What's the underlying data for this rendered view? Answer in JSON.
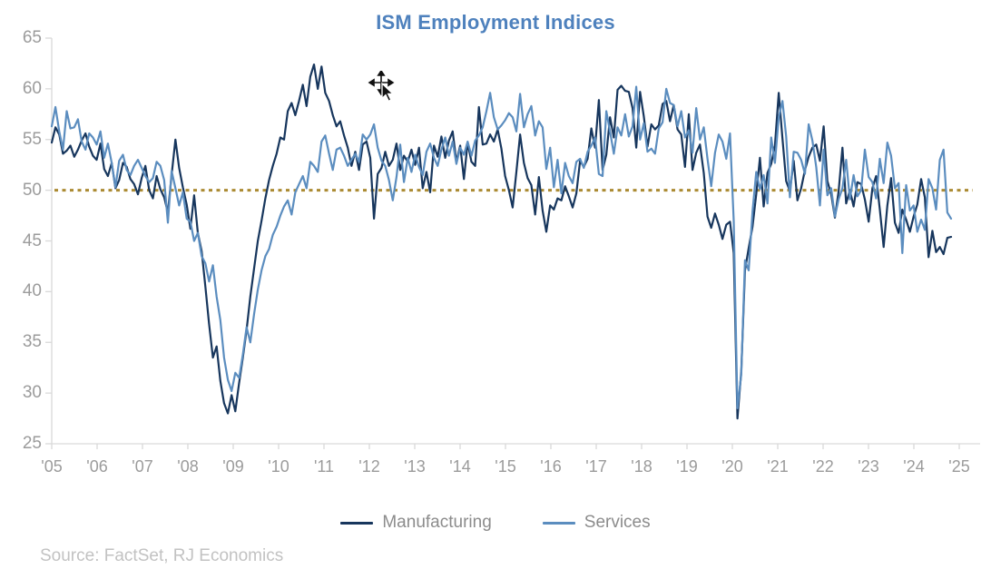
{
  "title": "ISM Employment Indices",
  "source_note": "Source: FactSet, RJ Economics",
  "colors": {
    "title": "#4e81bd",
    "manufacturing": "#17365d",
    "services": "#5b8dbf",
    "reference_line": "#ab8b33",
    "axis_line": "#d9d9d9",
    "axis_label": "#9b9b9b",
    "legend_text": "#8c8c8c",
    "source_text": "#c2c2c2"
  },
  "chart_data": {
    "type": "line",
    "title": "ISM Employment Indices",
    "xlabel": "",
    "ylabel": "",
    "ylim": [
      25,
      65
    ],
    "y_ticks": [
      25,
      30,
      35,
      40,
      45,
      50,
      55,
      60,
      65
    ],
    "x_tick_labels": [
      "'05",
      "'06",
      "'07",
      "'08",
      "'09",
      "'10",
      "'11",
      "'12",
      "'13",
      "'14",
      "'15",
      "'16",
      "'17",
      "'18",
      "'19",
      "'20",
      "'21",
      "'22",
      "'23",
      "'24",
      "'25"
    ],
    "x_frequency": "monthly",
    "x_range": "Jan 2005 - Jan 2025",
    "grid": false,
    "legend_position": "bottom",
    "reference_line": {
      "value": 50,
      "style": "dotted",
      "color": "#ab8b33"
    },
    "series": [
      {
        "name": "Manufacturing",
        "color": "#17365d",
        "values": [
          54.7,
          56.2,
          55.5,
          53.6,
          53.9,
          54.4,
          53.3,
          54.0,
          54.9,
          55.6,
          54.3,
          53.4,
          53.0,
          54.6,
          52.1,
          51.4,
          52.7,
          50.2,
          51.0,
          52.7,
          52.3,
          51.1,
          50.6,
          49.6,
          51.2,
          52.4,
          50.0,
          49.2,
          51.4,
          50.1,
          49.3,
          47.8,
          51.5,
          55.0,
          52.2,
          50.3,
          48.6,
          46.2,
          49.5,
          45.8,
          44.0,
          40.5,
          36.8,
          33.5,
          34.6,
          31.2,
          29.0,
          28.0,
          29.8,
          28.2,
          31.0,
          33.5,
          36.2,
          39.5,
          42.3,
          45.0,
          47.0,
          49.2,
          51.0,
          52.4,
          53.6,
          55.2,
          55.0,
          57.8,
          58.6,
          57.4,
          58.8,
          60.4,
          58.3,
          61.2,
          62.4,
          60.0,
          62.2,
          59.6,
          58.8,
          57.4,
          56.3,
          56.8,
          55.4,
          54.2,
          52.4,
          53.8,
          52.0,
          54.5,
          54.8,
          53.2,
          47.2,
          51.6,
          52.2,
          53.8,
          52.4,
          53.0,
          54.6,
          52.0,
          53.4,
          52.8,
          54.0,
          52.5,
          54.2,
          50.2,
          51.8,
          49.8,
          54.4,
          53.3,
          55.3,
          53.2,
          54.9,
          55.8,
          52.8,
          54.4,
          51.1,
          54.7,
          52.8,
          52.4,
          58.2,
          54.5,
          54.6,
          55.5,
          54.8,
          56.0,
          54.1,
          51.4,
          50.0,
          48.3,
          51.8,
          55.5,
          52.7,
          51.2,
          50.5,
          47.6,
          51.3,
          48.0,
          45.9,
          48.5,
          48.1,
          49.2,
          49.0,
          50.4,
          49.4,
          48.3,
          49.7,
          52.9,
          52.3,
          53.1,
          56.1,
          54.2,
          58.9,
          52.0,
          53.5,
          57.2,
          55.2,
          59.9,
          60.3,
          59.8,
          59.7,
          58.1,
          54.2,
          59.7,
          57.3,
          54.3,
          56.5,
          56.0,
          56.4,
          58.5,
          58.8,
          56.8,
          58.4,
          56.0,
          55.5,
          52.3,
          57.5,
          52.0,
          53.7,
          54.5,
          51.7,
          47.4,
          46.3,
          47.7,
          46.6,
          45.2,
          46.6,
          46.9,
          43.8,
          27.5,
          32.1,
          42.1,
          44.3,
          46.4,
          49.6,
          53.2,
          48.4,
          51.7,
          52.6,
          54.4,
          59.6,
          55.1,
          50.9,
          49.9,
          52.9,
          49.0,
          50.2,
          52.0,
          53.3,
          54.2,
          54.5,
          52.9,
          56.3,
          50.9,
          49.6,
          47.3,
          49.9,
          54.2,
          48.7,
          50.0,
          48.4,
          50.8,
          50.6,
          49.1,
          46.9,
          50.2,
          51.4,
          48.1,
          44.4,
          48.5,
          51.2,
          46.8,
          45.8,
          48.1,
          47.1,
          45.9,
          47.4,
          48.6,
          51.1,
          49.3,
          43.4,
          46.0,
          43.9,
          44.4,
          43.7,
          45.3,
          45.4
        ]
      },
      {
        "name": "Services",
        "color": "#5b8dbf",
        "values": [
          56.3,
          58.2,
          55.8,
          54.0,
          57.8,
          56.1,
          56.2,
          57.0,
          54.8,
          54.0,
          55.6,
          55.2,
          54.5,
          55.8,
          53.2,
          54.6,
          52.7,
          50.3,
          52.9,
          53.5,
          52.0,
          51.5,
          52.4,
          53.0,
          52.2,
          51.4,
          50.8,
          51.2,
          52.8,
          52.4,
          51.0,
          46.8,
          51.9,
          50.2,
          48.5,
          49.8,
          47.2,
          46.9,
          45.0,
          45.8,
          43.5,
          42.8,
          41.0,
          42.6,
          39.5,
          37.2,
          33.5,
          31.3,
          30.2,
          32.0,
          31.5,
          33.8,
          36.5,
          35.0,
          37.8,
          40.2,
          42.1,
          43.5,
          44.2,
          45.6,
          46.4,
          47.5,
          48.4,
          49.0,
          47.6,
          49.8,
          50.6,
          51.4,
          50.2,
          52.8,
          52.4,
          51.8,
          54.8,
          55.4,
          53.6,
          52.0,
          54.0,
          54.2,
          53.4,
          52.4,
          53.0,
          53.6,
          52.8,
          55.5,
          55.0,
          55.5,
          56.5,
          54.2,
          52.9,
          52.4,
          51.0,
          49.0,
          51.3,
          54.5,
          50.8,
          53.2,
          51.8,
          53.5,
          52.3,
          51.5,
          53.8,
          54.6,
          53.2,
          52.4,
          54.0,
          55.2,
          53.4,
          54.8,
          52.6,
          54.2,
          53.5,
          54.8,
          53.4,
          54.9,
          55.4,
          56.2,
          57.8,
          59.6,
          57.2,
          56.0,
          56.4,
          56.9,
          57.6,
          57.2,
          55.8,
          59.5,
          56.2,
          57.5,
          58.3,
          55.4,
          56.8,
          56.2,
          52.1,
          54.2,
          50.3,
          53.0,
          49.7,
          52.7,
          51.4,
          50.7,
          52.8,
          53.1,
          52.2,
          53.8,
          54.4,
          55.2,
          51.6,
          51.4,
          57.8,
          55.8,
          53.6,
          56.2,
          55.4,
          57.5,
          55.3,
          56.3,
          60.2,
          55.0,
          56.6,
          53.8,
          54.1,
          53.6,
          56.1,
          56.7,
          60.0,
          58.6,
          58.4,
          56.3,
          57.8,
          55.2,
          55.9,
          53.7,
          58.1,
          55.0,
          56.2,
          53.1,
          50.4,
          53.7,
          55.5,
          54.8,
          53.1,
          55.6,
          47.0,
          28.5,
          31.8,
          43.1,
          42.1,
          47.9,
          51.8,
          50.1,
          51.5,
          48.7,
          55.2,
          52.7,
          57.2,
          58.8,
          55.3,
          49.3,
          53.8,
          53.7,
          53.0,
          51.6,
          56.5,
          54.9,
          52.3,
          48.5,
          54.0,
          49.5,
          50.2,
          47.4,
          49.1,
          50.2,
          53.0,
          49.1,
          51.5,
          49.4,
          50.0,
          54.0,
          51.3,
          50.8,
          49.2,
          53.1,
          50.7,
          54.7,
          53.4,
          50.2,
          50.7,
          43.8,
          50.5,
          48.0,
          48.5,
          45.9,
          47.1,
          46.1,
          51.1,
          50.2,
          48.1,
          53.0,
          54.0,
          47.8,
          47.2
        ]
      }
    ]
  }
}
